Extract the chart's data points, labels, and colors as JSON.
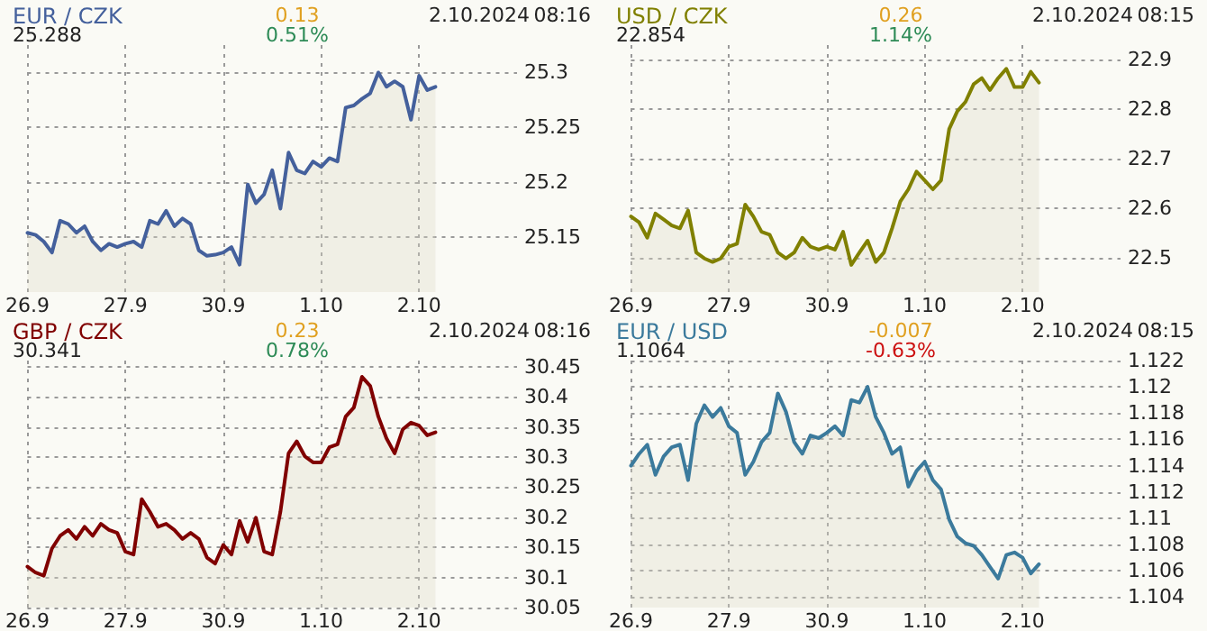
{
  "chart_data": [
    {
      "type": "area",
      "title": "EUR / CZK",
      "subtitle": "25.288",
      "annotations": [
        "0.13",
        "0.51%",
        "2.10.2024",
        "08:16"
      ],
      "categories": [
        "26.9",
        null,
        null,
        null,
        null,
        null,
        null,
        null,
        null,
        null,
        null,
        null,
        "27.9",
        null,
        null,
        null,
        null,
        null,
        null,
        null,
        null,
        null,
        null,
        null,
        "30.9",
        null,
        null,
        null,
        null,
        null,
        null,
        null,
        null,
        null,
        null,
        null,
        "1.10",
        null,
        null,
        null,
        null,
        null,
        null,
        null,
        null,
        null,
        null,
        null,
        "2.10",
        null,
        null,
        null,
        null,
        null,
        null,
        null,
        null,
        null,
        null,
        null,
        null
      ],
      "series": [
        {
          "color": "#44609c",
          "values": [
            25.154,
            25.152,
            25.146,
            25.136,
            25.165,
            25.162,
            25.154,
            25.16,
            25.146,
            25.138,
            25.144,
            25.141,
            25.144,
            25.146,
            25.141,
            25.165,
            25.162,
            25.174,
            25.16,
            25.167,
            25.162,
            25.138,
            25.133,
            25.134,
            25.136,
            25.141,
            25.125,
            25.198,
            25.181,
            25.189,
            25.211,
            25.176,
            25.227,
            25.211,
            25.208,
            25.219,
            25.214,
            25.222,
            25.219,
            25.268,
            25.27,
            25.276,
            25.281,
            25.3,
            25.287,
            25.292,
            25.287,
            25.257,
            25.297,
            25.284,
            25.287,
            null,
            null,
            null,
            null,
            null,
            null,
            null,
            null,
            null,
            null
          ]
        }
      ],
      "ylim": [
        25.1,
        25.325
      ],
      "yticks": [
        25.15,
        25.2,
        25.25,
        25.3
      ],
      "grid": true,
      "line_style": "solid"
    },
    {
      "type": "area",
      "title": "USD / CZK",
      "subtitle": "22.854",
      "annotations": [
        "0.26",
        "1.14%",
        "2.10.2024",
        "08:15"
      ],
      "categories": [
        "26.9",
        null,
        null,
        null,
        null,
        null,
        null,
        null,
        null,
        null,
        null,
        null,
        "27.9",
        null,
        null,
        null,
        null,
        null,
        null,
        null,
        null,
        null,
        null,
        null,
        "30.9",
        null,
        null,
        null,
        null,
        null,
        null,
        null,
        null,
        null,
        null,
        null,
        "1.10",
        null,
        null,
        null,
        null,
        null,
        null,
        null,
        null,
        null,
        null,
        null,
        "2.10",
        null,
        null,
        null,
        null,
        null,
        null,
        null,
        null,
        null,
        null,
        null,
        null
      ],
      "series": [
        {
          "color": "#808000",
          "values": [
            22.583,
            22.571,
            22.54,
            22.589,
            22.577,
            22.565,
            22.559,
            22.595,
            22.51,
            22.498,
            22.491,
            22.498,
            22.522,
            22.528,
            22.607,
            22.583,
            22.552,
            22.546,
            22.51,
            22.498,
            22.51,
            22.54,
            22.522,
            22.516,
            22.522,
            22.516,
            22.552,
            22.485,
            22.51,
            22.534,
            22.491,
            22.51,
            22.559,
            22.613,
            22.638,
            22.674,
            22.656,
            22.638,
            22.656,
            22.76,
            22.796,
            22.815,
            22.851,
            22.863,
            22.839,
            22.863,
            22.882,
            22.845,
            22.845,
            22.876,
            22.854,
            null,
            null,
            null,
            null,
            null,
            null,
            null,
            null,
            null,
            null
          ]
        }
      ],
      "ylim": [
        22.43,
        22.93
      ],
      "yticks": [
        22.5,
        22.6,
        22.7,
        22.8,
        22.9
      ],
      "grid": true,
      "line_style": "solid"
    },
    {
      "type": "area",
      "title": "GBP / CZK",
      "subtitle": "30.341",
      "annotations": [
        "0.23",
        "0.78%",
        "2.10.2024",
        "08:16"
      ],
      "categories": [
        "26.9",
        null,
        null,
        null,
        null,
        null,
        null,
        null,
        null,
        null,
        null,
        null,
        "27.9",
        null,
        null,
        null,
        null,
        null,
        null,
        null,
        null,
        null,
        null,
        null,
        "30.9",
        null,
        null,
        null,
        null,
        null,
        null,
        null,
        null,
        null,
        null,
        null,
        "1.10",
        null,
        null,
        null,
        null,
        null,
        null,
        null,
        null,
        null,
        null,
        null,
        "2.10",
        null,
        null,
        null,
        null,
        null,
        null,
        null,
        null,
        null,
        null,
        null,
        null
      ],
      "series": [
        {
          "color": "#800000",
          "values": [
            30.118,
            30.108,
            30.103,
            30.148,
            30.169,
            30.179,
            30.164,
            30.184,
            30.169,
            30.189,
            30.179,
            30.174,
            30.143,
            30.138,
            30.23,
            30.209,
            30.184,
            30.189,
            30.179,
            30.164,
            30.174,
            30.164,
            30.133,
            30.123,
            30.154,
            30.138,
            30.194,
            30.159,
            30.199,
            30.143,
            30.138,
            30.209,
            30.306,
            30.326,
            30.301,
            30.291,
            30.291,
            30.316,
            30.321,
            30.367,
            30.382,
            30.433,
            30.418,
            30.367,
            30.331,
            30.306,
            30.346,
            30.357,
            30.352,
            30.336,
            30.341,
            null,
            null,
            null,
            null,
            null,
            null,
            null,
            null,
            null,
            null
          ]
        }
      ],
      "ylim": [
        30.05,
        30.46
      ],
      "yticks": [
        30.05,
        30.1,
        30.15,
        30.2,
        30.25,
        30.3,
        30.35,
        30.4,
        30.45
      ],
      "grid": true,
      "line_style": "solid"
    },
    {
      "type": "area",
      "title": "EUR / USD",
      "subtitle": "1.1064",
      "annotations": [
        "-0.007",
        "-0.63%",
        "2.10.2024",
        "08:15"
      ],
      "categories": [
        "26.9",
        null,
        null,
        null,
        null,
        null,
        null,
        null,
        null,
        null,
        null,
        null,
        "27.9",
        null,
        null,
        null,
        null,
        null,
        null,
        null,
        null,
        null,
        null,
        null,
        "30.9",
        null,
        null,
        null,
        null,
        null,
        null,
        null,
        null,
        null,
        null,
        null,
        "1.10",
        null,
        null,
        null,
        null,
        null,
        null,
        null,
        null,
        null,
        null,
        null,
        "2.10",
        null,
        null,
        null,
        null,
        null,
        null,
        null,
        null,
        null,
        null,
        null,
        null
      ],
      "series": [
        {
          "color": "#3b7a9c",
          "values": [
            1.114,
            1.1149,
            1.1156,
            1.1133,
            1.1147,
            1.1154,
            1.1156,
            1.1129,
            1.1172,
            1.1186,
            1.1177,
            1.1184,
            1.117,
            1.1165,
            1.1133,
            1.1143,
            1.1158,
            1.1165,
            1.1195,
            1.1181,
            1.1158,
            1.1149,
            1.1163,
            1.1161,
            1.1165,
            1.117,
            1.1163,
            1.119,
            1.1188,
            1.12,
            1.1177,
            1.1165,
            1.1149,
            1.1154,
            1.1124,
            1.1136,
            1.1143,
            1.1129,
            1.1122,
            1.1099,
            1.1086,
            1.1081,
            1.1079,
            1.1072,
            1.1063,
            1.1054,
            1.1072,
            1.1074,
            1.107,
            1.1058,
            1.1065,
            null,
            null,
            null,
            null,
            null,
            null,
            null,
            null,
            null,
            null
          ]
        }
      ],
      "ylim": [
        1.1032,
        1.122
      ],
      "yticks": [
        1.104,
        1.106,
        1.108,
        1.11,
        1.112,
        1.114,
        1.116,
        1.118,
        1.12,
        1.122
      ],
      "grid": true,
      "line_style": "solid"
    }
  ]
}
